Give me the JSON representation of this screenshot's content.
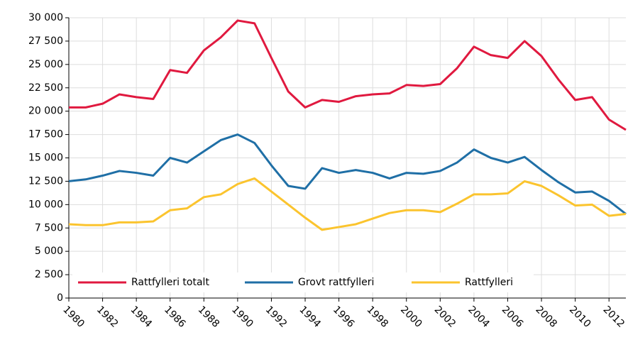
{
  "chart_data": {
    "type": "line",
    "x": [
      1980,
      1981,
      1982,
      1983,
      1984,
      1985,
      1986,
      1987,
      1988,
      1989,
      1990,
      1991,
      1992,
      1993,
      1994,
      1995,
      1996,
      1997,
      1998,
      1999,
      2000,
      2001,
      2002,
      2003,
      2004,
      2005,
      2006,
      2007,
      2008,
      2009,
      2010,
      2011,
      2012,
      2013
    ],
    "series": [
      {
        "name": "Rattfylleri totalt",
        "color": "#e0193f",
        "values": [
          20400,
          20400,
          20800,
          21800,
          21500,
          21300,
          24400,
          24100,
          26500,
          27900,
          29700,
          29400,
          25700,
          22100,
          20400,
          21200,
          21000,
          21600,
          21800,
          21900,
          22800,
          22700,
          22900,
          24600,
          26900,
          26000,
          25700,
          27500,
          25900,
          23400,
          21200,
          21500,
          19100,
          18000
        ]
      },
      {
        "name": "Grovt rattfylleri",
        "color": "#1f6fa6",
        "values": [
          12500,
          12700,
          13100,
          13600,
          13400,
          13100,
          15000,
          14500,
          15700,
          16900,
          17500,
          16600,
          14200,
          12000,
          11700,
          13900,
          13400,
          13700,
          13400,
          12800,
          13400,
          13300,
          13600,
          14500,
          15900,
          15000,
          14500,
          15100,
          13700,
          12400,
          11300,
          11400,
          10400,
          9000
        ]
      },
      {
        "name": "Rattfylleri",
        "color": "#fbc42e",
        "values": [
          7900,
          7800,
          7800,
          8100,
          8100,
          8200,
          9400,
          9600,
          10800,
          11100,
          12200,
          12800,
          11400,
          10000,
          8600,
          7300,
          7600,
          7900,
          8500,
          9100,
          9400,
          9400,
          9200,
          10100,
          11100,
          11100,
          11200,
          12500,
          12000,
          11000,
          9900,
          10000,
          8800,
          9000
        ]
      }
    ],
    "xlim": [
      1980,
      2013
    ],
    "xticks": [
      1980,
      1982,
      1984,
      1986,
      1988,
      1990,
      1992,
      1994,
      1996,
      1998,
      2000,
      2002,
      2004,
      2006,
      2008,
      2010,
      2012
    ],
    "ylim": [
      0,
      30000
    ],
    "yticks": [
      0,
      {
        "value": 2500,
        "label": "2 500"
      },
      {
        "value": 5000,
        "label": "5 000"
      },
      {
        "value": 7500,
        "label": "7 500"
      },
      {
        "value": 10000,
        "label": "10 000"
      },
      {
        "value": 12500,
        "label": "12 500"
      },
      {
        "value": 15000,
        "label": "15 000"
      },
      {
        "value": 17500,
        "label": "17 500"
      },
      {
        "value": 20000,
        "label": "20 000"
      },
      {
        "value": 22500,
        "label": "22 500"
      },
      {
        "value": 25000,
        "label": "25 000"
      },
      {
        "value": 27500,
        "label": "27 500"
      },
      {
        "value": 30000,
        "label": "30 000"
      }
    ],
    "grid": true,
    "legend": "lower left"
  }
}
